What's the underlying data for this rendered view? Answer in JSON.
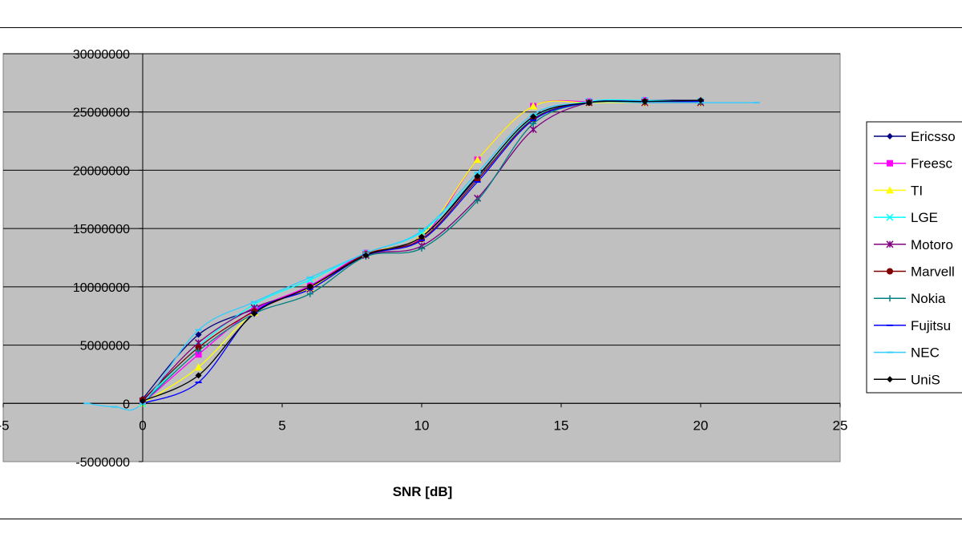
{
  "chart_data": {
    "type": "line",
    "title": "",
    "xlabel": "SNR [dB]",
    "ylabel": "",
    "xlim": [
      -5,
      25
    ],
    "ylim": [
      -5000000,
      30000000
    ],
    "x_ticks": [
      -5,
      0,
      5,
      10,
      15,
      20,
      25
    ],
    "x_tick_labels": [
      "-5",
      "0",
      "5",
      "10",
      "15",
      "20",
      "25"
    ],
    "y_ticks": [
      -5000000,
      0,
      5000000,
      10000000,
      15000000,
      20000000,
      25000000,
      30000000
    ],
    "y_tick_labels": [
      "-5000000",
      "0",
      "5000000",
      "10000000",
      "15000000",
      "20000000",
      "25000000",
      "30000000"
    ],
    "grid": "horizontal",
    "plot_background": "#c0c0c0",
    "legend_position": "right",
    "series": [
      {
        "name": "Ericsson",
        "label": "Ericsso",
        "color": "#000080",
        "marker": "diamond",
        "x": [
          0,
          2,
          4,
          6,
          8,
          10,
          12,
          14,
          16,
          18,
          20
        ],
        "y": [
          400000,
          5900000,
          8100000,
          10100000,
          12800000,
          14300000,
          19400000,
          24600000,
          25800000,
          26000000,
          26000000
        ]
      },
      {
        "name": "Freescale",
        "label": "Freesc",
        "color": "#ff00ff",
        "marker": "square",
        "x": [
          0,
          2,
          4,
          6,
          8,
          10,
          12,
          14,
          16,
          18,
          20
        ],
        "y": [
          0,
          4200000,
          8000000,
          10100000,
          12900000,
          14200000,
          20900000,
          25500000,
          25900000,
          26000000,
          25900000
        ]
      },
      {
        "name": "TI",
        "label": "TI",
        "color": "#ffff00",
        "marker": "triangle",
        "x": [
          0,
          2,
          4,
          6,
          8,
          10,
          12,
          14,
          16,
          18,
          20
        ],
        "y": [
          0,
          3100000,
          7800000,
          9900000,
          12800000,
          14400000,
          20900000,
          25500000,
          25800000,
          25800000,
          25800000
        ]
      },
      {
        "name": "LGE",
        "label": "LGE",
        "color": "#00ffff",
        "marker": "x",
        "x": [
          0,
          2,
          4,
          6,
          8,
          10,
          12,
          14,
          16,
          18,
          20
        ],
        "y": [
          0,
          4900000,
          8500000,
          10600000,
          12900000,
          14700000,
          19500000,
          24500000,
          25900000,
          26000000,
          25900000
        ]
      },
      {
        "name": "Motorola",
        "label": "Motoro",
        "color": "#800080",
        "marker": "asterisk",
        "x": [
          0,
          2,
          4,
          6,
          8,
          10,
          12,
          14,
          16,
          18,
          20
        ],
        "y": [
          200000,
          5200000,
          8200000,
          9800000,
          12700000,
          13500000,
          17600000,
          23500000,
          25800000,
          25800000,
          25800000
        ]
      },
      {
        "name": "Marvell",
        "label": "Marvell",
        "color": "#800000",
        "marker": "circle",
        "x": [
          0,
          2,
          4,
          6,
          8,
          10,
          12,
          14,
          16,
          18,
          20
        ],
        "y": [
          300000,
          4800000,
          7900000,
          10000000,
          12800000,
          14100000,
          19200000,
          24400000,
          25800000,
          25900000,
          25900000
        ]
      },
      {
        "name": "Nokia",
        "label": "Nokia",
        "color": "#008080",
        "marker": "plus",
        "x": [
          0,
          2,
          4,
          6,
          8,
          10,
          12,
          14,
          16,
          18,
          20
        ],
        "y": [
          0,
          4500000,
          7700000,
          9400000,
          12600000,
          13300000,
          17400000,
          24000000,
          25800000,
          25900000,
          25900000
        ]
      },
      {
        "name": "Fujitsu",
        "label": "Fujitsu",
        "color": "#0000ff",
        "marker": "dash",
        "x": [
          0,
          2,
          4,
          6,
          8,
          10,
          12,
          14,
          16,
          18,
          20
        ],
        "y": [
          0,
          1800000,
          7800000,
          9800000,
          12700000,
          14000000,
          19000000,
          24300000,
          25800000,
          25900000,
          25900000
        ]
      },
      {
        "name": "NEC",
        "label": "NEC",
        "color": "#33ccff",
        "marker": "dash",
        "x": [
          -2,
          -1,
          0,
          2,
          4,
          6,
          8,
          10,
          12,
          14,
          16,
          18,
          20,
          22
        ],
        "y": [
          0,
          -300000,
          0,
          6300000,
          8700000,
          10800000,
          12900000,
          14800000,
          19800000,
          24800000,
          25800000,
          25800000,
          25800000,
          25800000
        ]
      },
      {
        "name": "UniS",
        "label": "UniS",
        "color": "#000000",
        "marker": "diamond",
        "x": [
          0,
          2,
          4,
          6,
          8,
          10,
          12,
          14,
          16,
          18,
          20
        ],
        "y": [
          200000,
          2400000,
          7700000,
          10000000,
          12700000,
          14300000,
          19500000,
          24600000,
          25800000,
          25900000,
          26000000
        ]
      }
    ]
  }
}
